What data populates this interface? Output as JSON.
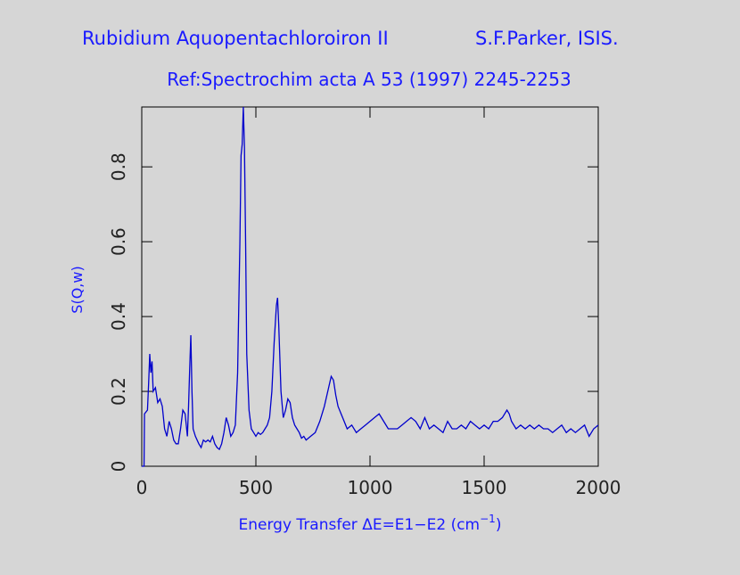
{
  "chart_data": {
    "type": "line",
    "title": "Rubidium Aquopentachloroiron II",
    "title_right": "S.F.Parker, ISIS.",
    "subtitle": "Ref:Spectrochim acta A 53 (1997) 2245-2253",
    "xlabel": {
      "text": "Energy Transfer ΔE=E1−E2 (cm",
      "superscript": "−1",
      "suffix": ")"
    },
    "ylabel": "S(Q,w)",
    "xlim": [
      0,
      2000
    ],
    "xticks": [
      0,
      500,
      1000,
      1500,
      2000
    ],
    "ylim": [
      0,
      0.96
    ],
    "yticks": [
      0,
      0.2,
      0.4,
      0.6,
      0.8
    ],
    "x": [
      0,
      10,
      12,
      25,
      30,
      35,
      40,
      45,
      50,
      60,
      70,
      80,
      90,
      100,
      110,
      120,
      130,
      140,
      150,
      160,
      170,
      180,
      190,
      200,
      205,
      210,
      215,
      220,
      225,
      235,
      250,
      260,
      270,
      280,
      290,
      300,
      310,
      320,
      330,
      340,
      350,
      360,
      370,
      380,
      390,
      400,
      410,
      420,
      430,
      435,
      440,
      445,
      450,
      455,
      460,
      470,
      480,
      490,
      500,
      510,
      520,
      530,
      540,
      550,
      560,
      570,
      580,
      590,
      595,
      600,
      610,
      620,
      630,
      640,
      650,
      660,
      670,
      680,
      690,
      700,
      710,
      720,
      740,
      760,
      780,
      800,
      815,
      830,
      840,
      850,
      860,
      880,
      900,
      920,
      940,
      960,
      980,
      1000,
      1020,
      1040,
      1060,
      1080,
      1100,
      1120,
      1140,
      1160,
      1180,
      1200,
      1220,
      1240,
      1260,
      1280,
      1300,
      1320,
      1340,
      1360,
      1380,
      1400,
      1420,
      1440,
      1460,
      1480,
      1500,
      1520,
      1540,
      1560,
      1580,
      1600,
      1610,
      1620,
      1640,
      1660,
      1680,
      1700,
      1720,
      1740,
      1760,
      1780,
      1800,
      1820,
      1840,
      1860,
      1880,
      1900,
      1920,
      1940,
      1960,
      1980,
      2000
    ],
    "series": [
      {
        "name": "S(Q,w)",
        "color": "#0000cc",
        "values": [
          0,
          0,
          0.14,
          0.15,
          0.22,
          0.3,
          0.25,
          0.28,
          0.2,
          0.21,
          0.17,
          0.18,
          0.16,
          0.1,
          0.08,
          0.12,
          0.1,
          0.07,
          0.06,
          0.06,
          0.1,
          0.15,
          0.14,
          0.08,
          0.16,
          0.26,
          0.35,
          0.2,
          0.1,
          0.08,
          0.06,
          0.05,
          0.07,
          0.065,
          0.07,
          0.065,
          0.08,
          0.06,
          0.05,
          0.045,
          0.06,
          0.09,
          0.13,
          0.11,
          0.08,
          0.09,
          0.11,
          0.25,
          0.6,
          0.83,
          0.86,
          0.96,
          0.85,
          0.6,
          0.3,
          0.15,
          0.1,
          0.09,
          0.08,
          0.09,
          0.085,
          0.09,
          0.1,
          0.11,
          0.13,
          0.2,
          0.33,
          0.43,
          0.45,
          0.38,
          0.2,
          0.13,
          0.15,
          0.18,
          0.17,
          0.13,
          0.11,
          0.1,
          0.09,
          0.075,
          0.08,
          0.07,
          0.08,
          0.09,
          0.12,
          0.16,
          0.2,
          0.24,
          0.23,
          0.19,
          0.16,
          0.13,
          0.1,
          0.11,
          0.09,
          0.1,
          0.11,
          0.12,
          0.13,
          0.14,
          0.12,
          0.1,
          0.1,
          0.1,
          0.11,
          0.12,
          0.13,
          0.12,
          0.1,
          0.13,
          0.1,
          0.11,
          0.1,
          0.09,
          0.12,
          0.1,
          0.1,
          0.11,
          0.1,
          0.12,
          0.11,
          0.1,
          0.11,
          0.1,
          0.12,
          0.12,
          0.13,
          0.15,
          0.14,
          0.12,
          0.1,
          0.11,
          0.1,
          0.11,
          0.1,
          0.11,
          0.1,
          0.1,
          0.09,
          0.1,
          0.11,
          0.09,
          0.1,
          0.09,
          0.1,
          0.11,
          0.08,
          0.1,
          0.11
        ]
      }
    ]
  }
}
